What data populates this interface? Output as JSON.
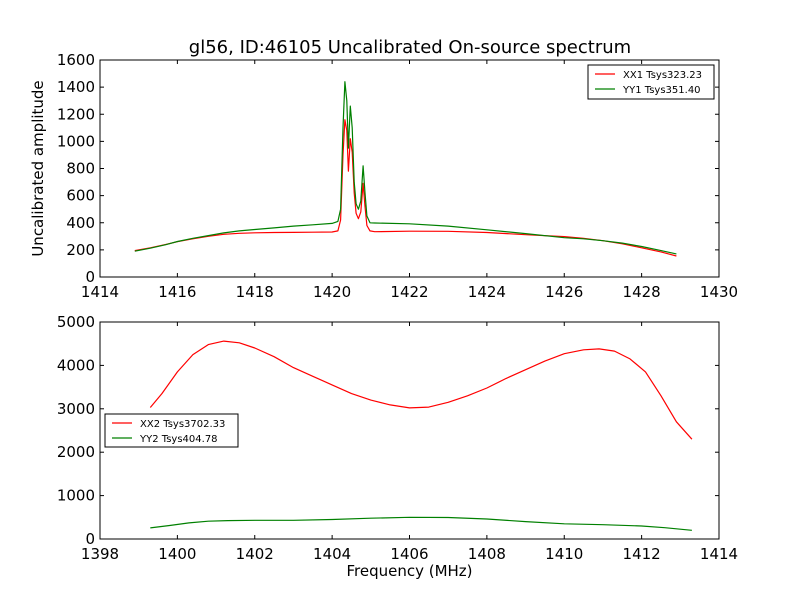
{
  "figure": {
    "title": "gl56, ID:46105 Uncalibrated On-source spectrum"
  },
  "chart_data": [
    {
      "type": "line",
      "title": "gl56, ID:46105 Uncalibrated On-source spectrum",
      "xlabel": "",
      "ylabel": "Uncalibrated amplitude",
      "xlim": [
        1414,
        1430
      ],
      "ylim": [
        0,
        1600
      ],
      "xticks": [
        1414,
        1416,
        1418,
        1420,
        1422,
        1424,
        1426,
        1428,
        1430
      ],
      "yticks": [
        0,
        200,
        400,
        600,
        800,
        1000,
        1200,
        1400,
        1600
      ],
      "grid": false,
      "legend": "top-right",
      "series": [
        {
          "name": "XX1 Tsys323.23",
          "color": "#ff0000",
          "points": [
            [
              1414.9,
              195
            ],
            [
              1415.3,
              215
            ],
            [
              1415.7,
              240
            ],
            [
              1416.0,
              260
            ],
            [
              1416.4,
              282
            ],
            [
              1416.8,
              300
            ],
            [
              1417.2,
              315
            ],
            [
              1417.6,
              322
            ],
            [
              1418.0,
              326
            ],
            [
              1418.5,
              328
            ],
            [
              1419.0,
              329
            ],
            [
              1419.5,
              330
            ],
            [
              1420.0,
              332
            ],
            [
              1420.15,
              340
            ],
            [
              1420.22,
              420
            ],
            [
              1420.28,
              900
            ],
            [
              1420.33,
              1160
            ],
            [
              1420.38,
              1080
            ],
            [
              1420.42,
              780
            ],
            [
              1420.47,
              1020
            ],
            [
              1420.52,
              920
            ],
            [
              1420.57,
              620
            ],
            [
              1420.62,
              470
            ],
            [
              1420.68,
              430
            ],
            [
              1420.74,
              480
            ],
            [
              1420.8,
              690
            ],
            [
              1420.85,
              520
            ],
            [
              1420.9,
              380
            ],
            [
              1420.98,
              340
            ],
            [
              1421.1,
              334
            ],
            [
              1422.0,
              338
            ],
            [
              1423.0,
              337
            ],
            [
              1424.0,
              328
            ],
            [
              1425.0,
              312
            ],
            [
              1426.0,
              298
            ],
            [
              1426.5,
              285
            ],
            [
              1427.0,
              268
            ],
            [
              1427.5,
              245
            ],
            [
              1428.0,
              215
            ],
            [
              1428.5,
              185
            ],
            [
              1428.9,
              155
            ]
          ]
        },
        {
          "name": "YY1 Tsys351.40",
          "color": "#008000",
          "points": [
            [
              1414.9,
              190
            ],
            [
              1415.3,
              212
            ],
            [
              1415.7,
              238
            ],
            [
              1416.0,
              262
            ],
            [
              1416.4,
              285
            ],
            [
              1416.8,
              305
            ],
            [
              1417.2,
              325
            ],
            [
              1417.6,
              340
            ],
            [
              1418.0,
              350
            ],
            [
              1418.5,
              362
            ],
            [
              1419.0,
              375
            ],
            [
              1419.5,
              385
            ],
            [
              1420.0,
              395
            ],
            [
              1420.15,
              410
            ],
            [
              1420.22,
              500
            ],
            [
              1420.28,
              1100
            ],
            [
              1420.33,
              1440
            ],
            [
              1420.38,
              1300
            ],
            [
              1420.42,
              950
            ],
            [
              1420.47,
              1260
            ],
            [
              1420.52,
              1100
            ],
            [
              1420.57,
              700
            ],
            [
              1420.62,
              540
            ],
            [
              1420.68,
              500
            ],
            [
              1420.74,
              560
            ],
            [
              1420.8,
              820
            ],
            [
              1420.85,
              620
            ],
            [
              1420.9,
              450
            ],
            [
              1420.98,
              400
            ],
            [
              1421.1,
              398
            ],
            [
              1422.0,
              392
            ],
            [
              1423.0,
              375
            ],
            [
              1424.0,
              348
            ],
            [
              1425.0,
              320
            ],
            [
              1426.0,
              290
            ],
            [
              1426.5,
              282
            ],
            [
              1427.0,
              268
            ],
            [
              1427.5,
              250
            ],
            [
              1428.0,
              225
            ],
            [
              1428.5,
              195
            ],
            [
              1428.9,
              170
            ]
          ]
        }
      ]
    },
    {
      "type": "line",
      "title": "",
      "xlabel": "Frequency (MHz)",
      "ylabel": "",
      "xlim": [
        1398,
        1414
      ],
      "ylim": [
        0,
        5000
      ],
      "xticks": [
        1398,
        1400,
        1402,
        1404,
        1406,
        1408,
        1410,
        1412,
        1414
      ],
      "yticks": [
        0,
        1000,
        2000,
        3000,
        4000,
        5000
      ],
      "grid": false,
      "legend": "center-left",
      "series": [
        {
          "name": "XX2 Tsys3702.33",
          "color": "#ff0000",
          "points": [
            [
              1399.3,
              3030
            ],
            [
              1399.6,
              3350
            ],
            [
              1400.0,
              3850
            ],
            [
              1400.4,
              4250
            ],
            [
              1400.8,
              4480
            ],
            [
              1401.2,
              4560
            ],
            [
              1401.6,
              4520
            ],
            [
              1402.0,
              4400
            ],
            [
              1402.5,
              4200
            ],
            [
              1403.0,
              3950
            ],
            [
              1403.5,
              3750
            ],
            [
              1404.0,
              3550
            ],
            [
              1404.5,
              3350
            ],
            [
              1405.0,
              3200
            ],
            [
              1405.5,
              3090
            ],
            [
              1406.0,
              3020
            ],
            [
              1406.5,
              3040
            ],
            [
              1407.0,
              3150
            ],
            [
              1407.5,
              3300
            ],
            [
              1408.0,
              3480
            ],
            [
              1408.5,
              3700
            ],
            [
              1409.0,
              3900
            ],
            [
              1409.5,
              4100
            ],
            [
              1410.0,
              4270
            ],
            [
              1410.5,
              4360
            ],
            [
              1410.9,
              4380
            ],
            [
              1411.3,
              4330
            ],
            [
              1411.7,
              4150
            ],
            [
              1412.1,
              3850
            ],
            [
              1412.5,
              3300
            ],
            [
              1412.9,
              2700
            ],
            [
              1413.3,
              2300
            ]
          ]
        },
        {
          "name": "YY2 Tsys404.78",
          "color": "#008000",
          "points": [
            [
              1399.3,
              255
            ],
            [
              1399.8,
              310
            ],
            [
              1400.3,
              370
            ],
            [
              1400.8,
              410
            ],
            [
              1401.3,
              425
            ],
            [
              1402.0,
              430
            ],
            [
              1403.0,
              430
            ],
            [
              1404.0,
              450
            ],
            [
              1405.0,
              480
            ],
            [
              1406.0,
              500
            ],
            [
              1407.0,
              495
            ],
            [
              1408.0,
              460
            ],
            [
              1409.0,
              400
            ],
            [
              1410.0,
              350
            ],
            [
              1411.0,
              330
            ],
            [
              1412.0,
              300
            ],
            [
              1412.6,
              260
            ],
            [
              1413.3,
              200
            ]
          ]
        }
      ]
    }
  ]
}
